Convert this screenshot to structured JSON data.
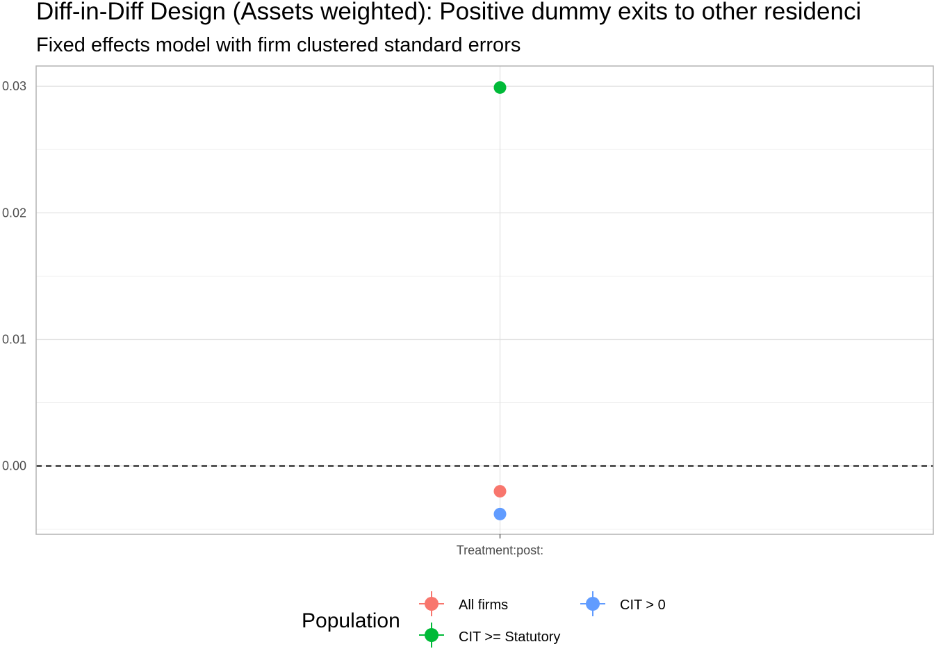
{
  "chart_data": {
    "type": "scatter",
    "title": "Diff-in-Diff Design (Assets weighted): Positive dummy exits to other residenci",
    "subtitle": "Fixed effects model with firm clustered standard errors",
    "xlabel": "",
    "ylabel": "",
    "categories": [
      "Treatment:post:"
    ],
    "y_ticks": [
      0.0,
      0.01,
      0.02,
      0.03
    ],
    "y_tick_labels": [
      "0.00",
      "0.01",
      "0.02",
      "0.03"
    ],
    "ylim": [
      -0.0054,
      0.0316
    ],
    "reference_line": {
      "y": 0,
      "style": "dashed",
      "color": "#000000"
    },
    "grid": true,
    "series": [
      {
        "name": "All firms",
        "color": "#F8766D",
        "values": [
          -0.002
        ]
      },
      {
        "name": "CIT >= Statutory",
        "color": "#00BA38",
        "values": [
          0.0299
        ]
      },
      {
        "name": "CIT > 0",
        "color": "#619CFF",
        "values": [
          -0.0038
        ]
      }
    ],
    "legend": {
      "title": "Population",
      "position": "bottom",
      "entries": [
        "All firms",
        "CIT > 0",
        "CIT >= Statutory"
      ]
    }
  },
  "colors": {
    "panel_border": "#b3b3b3",
    "grid_major": "#e0e0e0",
    "grid_minor": "#efefef",
    "axis_text": "#4d4d4d"
  }
}
